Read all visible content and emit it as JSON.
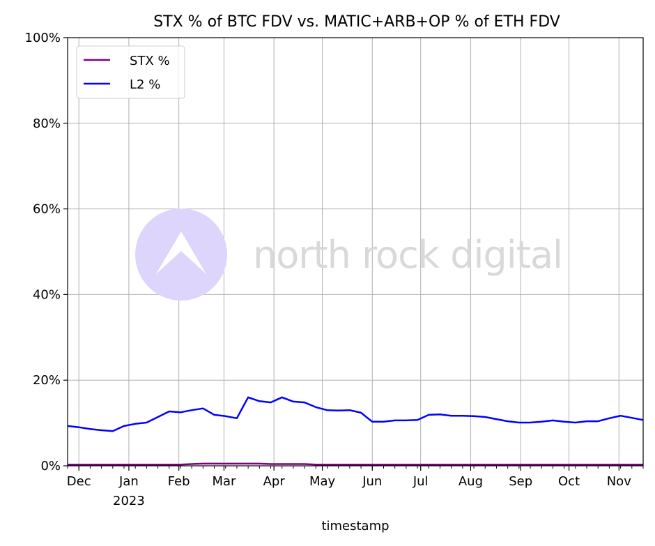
{
  "chart_data": {
    "type": "line",
    "title": "STX % of BTC FDV vs. MATIC+ARB+OP % of ETH FDV",
    "xlabel": "timestamp",
    "ylabel": "",
    "ylim": [
      0,
      100
    ],
    "xlim": [
      "2022-11-24",
      "2023-11-16"
    ],
    "yticks": [
      "0%",
      "20%",
      "40%",
      "60%",
      "80%",
      "100%"
    ],
    "ytick_values": [
      0,
      20,
      40,
      60,
      80,
      100
    ],
    "xticks": [
      {
        "date": "2022-12-01",
        "label": "Dec",
        "sublabel": ""
      },
      {
        "date": "2023-01-01",
        "label": "Jan",
        "sublabel": "2023"
      },
      {
        "date": "2023-02-01",
        "label": "Feb",
        "sublabel": ""
      },
      {
        "date": "2023-03-01",
        "label": "Mar",
        "sublabel": ""
      },
      {
        "date": "2023-04-01",
        "label": "Apr",
        "sublabel": ""
      },
      {
        "date": "2023-05-01",
        "label": "May",
        "sublabel": ""
      },
      {
        "date": "2023-06-01",
        "label": "Jun",
        "sublabel": ""
      },
      {
        "date": "2023-07-01",
        "label": "Jul",
        "sublabel": ""
      },
      {
        "date": "2023-08-01",
        "label": "Aug",
        "sublabel": ""
      },
      {
        "date": "2023-09-01",
        "label": "Sep",
        "sublabel": ""
      },
      {
        "date": "2023-10-01",
        "label": "Oct",
        "sublabel": ""
      },
      {
        "date": "2023-11-01",
        "label": "Nov",
        "sublabel": ""
      }
    ],
    "grid": true,
    "legend_position": "top-left",
    "x": [
      "2022-11-24",
      "2022-12-01",
      "2022-12-08",
      "2022-12-15",
      "2022-12-22",
      "2022-12-29",
      "2023-01-05",
      "2023-01-12",
      "2023-01-19",
      "2023-01-26",
      "2023-02-02",
      "2023-02-09",
      "2023-02-16",
      "2023-02-23",
      "2023-03-02",
      "2023-03-09",
      "2023-03-16",
      "2023-03-23",
      "2023-03-30",
      "2023-04-06",
      "2023-04-13",
      "2023-04-20",
      "2023-04-27",
      "2023-05-04",
      "2023-05-11",
      "2023-05-18",
      "2023-05-25",
      "2023-06-01",
      "2023-06-08",
      "2023-06-15",
      "2023-06-22",
      "2023-06-29",
      "2023-07-06",
      "2023-07-13",
      "2023-07-20",
      "2023-07-27",
      "2023-08-03",
      "2023-08-10",
      "2023-08-17",
      "2023-08-24",
      "2023-08-31",
      "2023-09-07",
      "2023-09-14",
      "2023-09-21",
      "2023-09-28",
      "2023-10-05",
      "2023-10-12",
      "2023-10-19",
      "2023-10-26",
      "2023-11-02",
      "2023-11-09",
      "2023-11-16"
    ],
    "series": [
      {
        "name": "STX %",
        "color": "#800080",
        "values": [
          0.3,
          0.3,
          0.3,
          0.3,
          0.3,
          0.3,
          0.3,
          0.3,
          0.3,
          0.3,
          0.3,
          0.4,
          0.5,
          0.5,
          0.5,
          0.5,
          0.5,
          0.5,
          0.4,
          0.4,
          0.4,
          0.4,
          0.3,
          0.3,
          0.3,
          0.3,
          0.3,
          0.3,
          0.3,
          0.3,
          0.3,
          0.3,
          0.3,
          0.3,
          0.3,
          0.3,
          0.3,
          0.3,
          0.3,
          0.3,
          0.3,
          0.3,
          0.3,
          0.3,
          0.3,
          0.3,
          0.3,
          0.3,
          0.3,
          0.3,
          0.3,
          0.3
        ]
      },
      {
        "name": "L2 %",
        "color": "#0000ff",
        "values": [
          9.3,
          9.0,
          8.6,
          8.3,
          8.1,
          9.3,
          9.8,
          10.1,
          11.4,
          12.7,
          12.5,
          13.0,
          13.4,
          11.9,
          11.6,
          11.1,
          16.0,
          15.1,
          14.8,
          16.0,
          15.0,
          14.8,
          13.7,
          13.0,
          12.9,
          13.0,
          12.4,
          10.3,
          10.3,
          10.6,
          10.6,
          10.7,
          11.9,
          12.0,
          11.7,
          11.7,
          11.6,
          11.4,
          10.9,
          10.4,
          10.1,
          10.1,
          10.3,
          10.6,
          10.3,
          10.1,
          10.4,
          10.4,
          11.1,
          11.7,
          11.2,
          10.7
        ]
      }
    ]
  },
  "watermark": {
    "text": "north rock digital",
    "logo_color": "#ddd5fb",
    "text_color": "#d9d9d9"
  }
}
